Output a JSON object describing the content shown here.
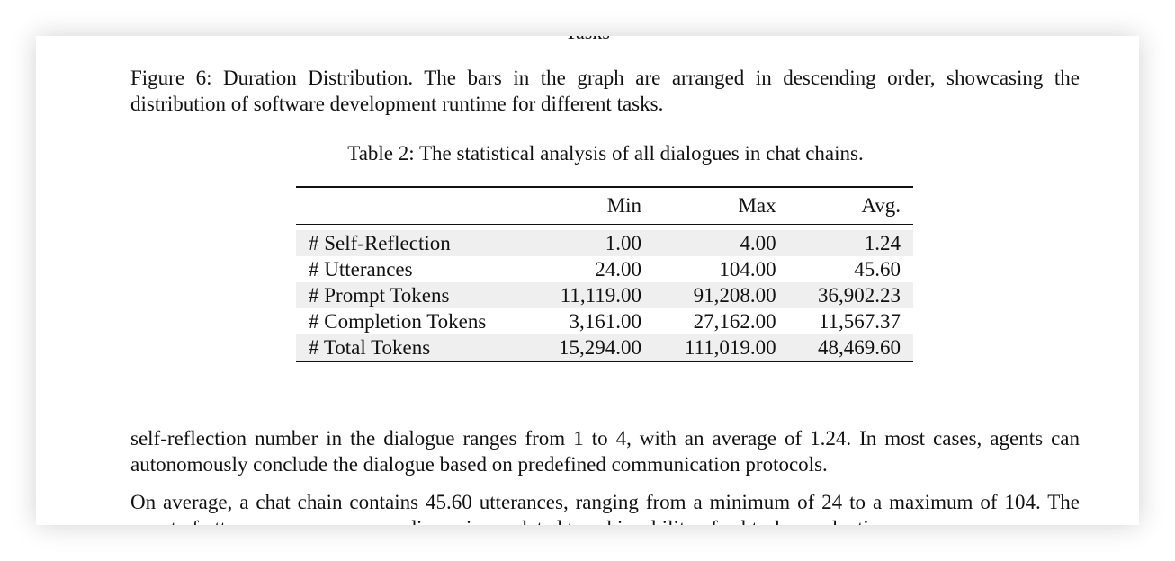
{
  "cut_top_text": "Tasks",
  "figure_caption": "Figure 6: Duration Distribution. The bars in the graph are arranged in descending order, showcasing the distribution of software development runtime for different tasks.",
  "table": {
    "caption": "Table 2: The statistical analysis of all dialogues in chat chains.",
    "columns": [
      "",
      "Min",
      "Max",
      "Avg."
    ],
    "rows": [
      {
        "label": "# Self-Reflection",
        "min": "1.00",
        "max": "4.00",
        "avg": "1.24"
      },
      {
        "label": "# Utterances",
        "min": "24.00",
        "max": "104.00",
        "avg": "45.60"
      },
      {
        "label": "# Prompt Tokens",
        "min": "11,119.00",
        "max": "91,208.00",
        "avg": "36,902.23"
      },
      {
        "label": "# Completion Tokens",
        "min": "3,161.00",
        "max": "27,162.00",
        "avg": "11,567.37"
      },
      {
        "label": "# Total Tokens",
        "min": "15,294.00",
        "max": "111,019.00",
        "avg": "48,469.60"
      }
    ]
  },
  "paragraphs": [
    "self-reflection number in the dialogue ranges from 1 to 4, with an average of 1.24. In most cases, agents can autonomously conclude the dialogue based on predefined communication protocols.",
    "On average, a chat chain contains 45.60 utterances, ranging from a minimum of 24 to a maximum of 104. The count of utterances encompasses discussions related to achievability of subtasks, evaluations"
  ]
}
